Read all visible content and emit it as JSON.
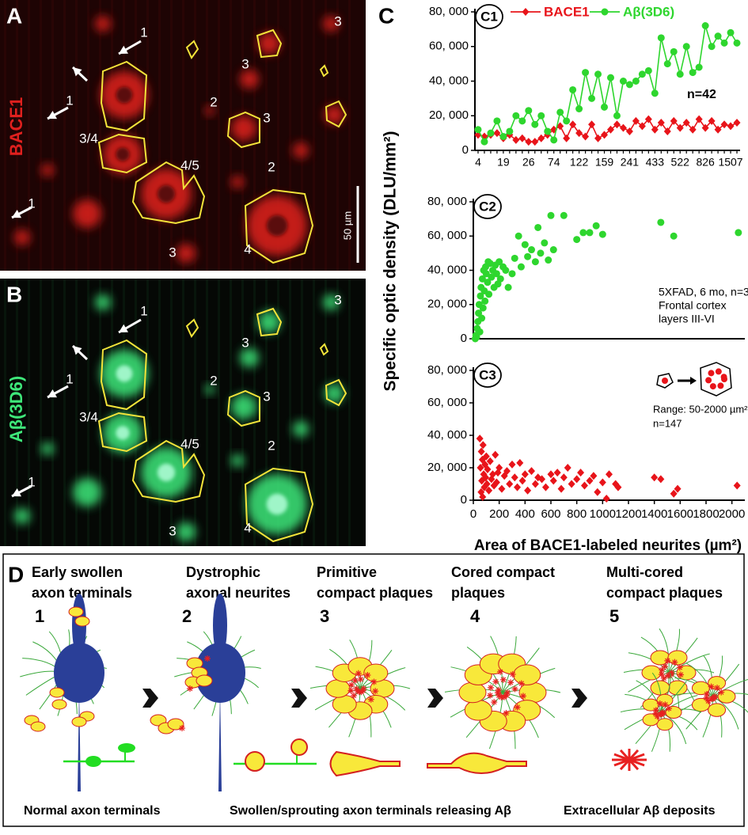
{
  "panels": [
    {
      "label": "A",
      "stain": "BACE1",
      "annotations": [
        "1",
        "1",
        "1",
        "3",
        "3",
        "3",
        "3",
        "2",
        "2",
        "3/4",
        "4/5",
        "4"
      ],
      "scale_bar": "50 µm"
    },
    {
      "label": "B",
      "stain": "Aβ(3D6)",
      "annotations": [
        "1",
        "1",
        "1",
        "3",
        "3",
        "3",
        "3",
        "2",
        "2",
        "3/4",
        "4/5",
        "4"
      ]
    }
  ],
  "panel_c_label": "C",
  "shared_y_label": "Specific optic density (DLU/mm²)",
  "chart_data": [
    {
      "type": "line",
      "label": "C1",
      "annotations": [
        "n=42"
      ],
      "categories": [
        "4",
        null,
        null,
        null,
        "19",
        null,
        null,
        null,
        "26",
        null,
        null,
        null,
        "74",
        null,
        null,
        null,
        "122",
        null,
        null,
        null,
        "159",
        null,
        null,
        null,
        "241",
        null,
        null,
        null,
        "433",
        null,
        null,
        null,
        "522",
        null,
        null,
        null,
        "826",
        null,
        null,
        null,
        "1507",
        null
      ],
      "series": [
        {
          "name": "BACE1",
          "color": "#e8141a",
          "marker": "diamond",
          "values": [
            9000,
            8000,
            9000,
            10000,
            7000,
            9000,
            6000,
            7000,
            5000,
            5000,
            7000,
            9000,
            12000,
            14000,
            7000,
            15000,
            10000,
            8000,
            15000,
            7000,
            9000,
            12000,
            15000,
            13000,
            11000,
            17000,
            14000,
            18000,
            12000,
            16000,
            11000,
            17000,
            13000,
            16000,
            12000,
            18000,
            13000,
            17000,
            12000,
            15000,
            14000,
            16000
          ]
        },
        {
          "name": "Aβ(3D6)",
          "color": "#2ed62e",
          "marker": "circle",
          "values": [
            12000,
            5000,
            10000,
            17000,
            8000,
            11000,
            20000,
            17000,
            23000,
            15000,
            20000,
            11000,
            6000,
            22000,
            17000,
            35000,
            24000,
            45000,
            30000,
            44000,
            25000,
            42000,
            20000,
            40000,
            38000,
            40000,
            44000,
            46000,
            33000,
            65000,
            50000,
            57000,
            44000,
            60000,
            45000,
            48000,
            72000,
            60000,
            66000,
            62000,
            68000,
            62000
          ]
        }
      ],
      "ylim": [
        0,
        80000
      ],
      "yticks": [
        {
          "value": 0,
          "label": "0"
        },
        {
          "value": 20000,
          "label": "20, 000"
        },
        {
          "value": 40000,
          "label": "40, 000"
        },
        {
          "value": 60000,
          "label": "60, 000"
        },
        {
          "value": 80000,
          "label": "80, 000"
        }
      ]
    },
    {
      "type": "scatter",
      "label": "C2",
      "annotations": [
        "5XFAD, 6 mo, n=3",
        "Frontal cortex",
        "layers III-VI"
      ],
      "color": "#2ed62e",
      "marker": "circle",
      "x": [
        15,
        20,
        25,
        30,
        35,
        40,
        45,
        50,
        55,
        60,
        65,
        70,
        75,
        80,
        85,
        90,
        95,
        100,
        110,
        115,
        120,
        130,
        140,
        150,
        160,
        170,
        180,
        190,
        200,
        210,
        230,
        250,
        270,
        300,
        320,
        350,
        370,
        400,
        420,
        450,
        480,
        500,
        520,
        550,
        580,
        600,
        620,
        700,
        800,
        850,
        900,
        950,
        1000,
        1450,
        1550,
        2050
      ],
      "values": [
        0,
        2000,
        1000,
        6000,
        10000,
        15000,
        20000,
        4000,
        25000,
        30000,
        12000,
        35000,
        18000,
        40000,
        28000,
        22000,
        42000,
        38000,
        33000,
        45000,
        26000,
        44000,
        36000,
        40000,
        30000,
        43000,
        38000,
        32000,
        45000,
        35000,
        42000,
        40000,
        30000,
        38000,
        47000,
        60000,
        42000,
        55000,
        48000,
        52000,
        45000,
        65000,
        50000,
        56000,
        46000,
        72000,
        52000,
        72000,
        58000,
        62000,
        62000,
        66000,
        61000,
        68000,
        60000,
        62000
      ],
      "xlim": [
        0,
        2100
      ],
      "ylim": [
        0,
        80000
      ],
      "yticks": [
        {
          "value": 0,
          "label": "0"
        },
        {
          "value": 20000,
          "label": "20, 000"
        },
        {
          "value": 40000,
          "label": "40, 000"
        },
        {
          "value": 60000,
          "label": "60, 000"
        },
        {
          "value": 80000,
          "label": "80, 000"
        }
      ]
    },
    {
      "type": "scatter",
      "label": "C3",
      "annotations": [
        "Range: 50-2000 µm²",
        "n=147"
      ],
      "color": "#e8141a",
      "marker": "diamond",
      "x": [
        50,
        55,
        60,
        62,
        65,
        70,
        72,
        75,
        80,
        85,
        90,
        95,
        100,
        105,
        110,
        120,
        130,
        140,
        150,
        160,
        170,
        180,
        190,
        200,
        220,
        240,
        260,
        280,
        300,
        320,
        340,
        360,
        380,
        400,
        420,
        450,
        480,
        500,
        530,
        560,
        600,
        620,
        650,
        680,
        700,
        730,
        760,
        800,
        830,
        860,
        900,
        930,
        960,
        1000,
        1030,
        1050,
        1100,
        1120,
        1400,
        1450,
        1550,
        1580,
        2040
      ],
      "values": [
        38000,
        20000,
        5000,
        30000,
        12000,
        25000,
        2000,
        34000,
        16000,
        8000,
        22000,
        14000,
        27000,
        10000,
        19000,
        6000,
        24000,
        13000,
        16000,
        9000,
        28000,
        11000,
        17000,
        20000,
        7000,
        15000,
        18000,
        10000,
        22000,
        14000,
        8000,
        23000,
        12000,
        16000,
        6000,
        18000,
        10000,
        14000,
        13000,
        8000,
        16000,
        12000,
        17000,
        7000,
        14000,
        20000,
        10000,
        13000,
        17000,
        9000,
        12000,
        15000,
        5000,
        11000,
        1000,
        16000,
        10000,
        8000,
        14000,
        13000,
        4000,
        7000,
        9000
      ],
      "xlim": [
        0,
        2100
      ],
      "ylim": [
        0,
        80000
      ],
      "xticks": [
        0,
        200,
        400,
        600,
        800,
        1000,
        1200,
        1400,
        1600,
        1800,
        2000
      ],
      "yticks": [
        {
          "value": 0,
          "label": "0"
        },
        {
          "value": 20000,
          "label": "20, 000"
        },
        {
          "value": 40000,
          "label": "40, 000"
        },
        {
          "value": 60000,
          "label": "60, 000"
        },
        {
          "value": 80000,
          "label": "80, 000"
        }
      ],
      "x_label": "Area of BACE1-labeled neurites (µm²)"
    }
  ],
  "diagram": {
    "label": "D",
    "stages": [
      {
        "title": [
          "Early swollen",
          "axon terminals"
        ],
        "number": "1"
      },
      {
        "title": [
          "Dystrophic",
          "axonal neurites"
        ],
        "number": "2"
      },
      {
        "title": [
          "Primitive",
          "compact plaques"
        ],
        "number": "3"
      },
      {
        "title": [
          "Cored compact",
          "plaques"
        ],
        "number": "4"
      },
      {
        "title": [
          "Multi-cored",
          "compact plaques"
        ],
        "number": "5"
      }
    ],
    "legend": [
      "Normal axon terminals",
      "Swollen/sprouting axon terminals releasing Aβ",
      "Extracellular Aβ deposits"
    ]
  }
}
